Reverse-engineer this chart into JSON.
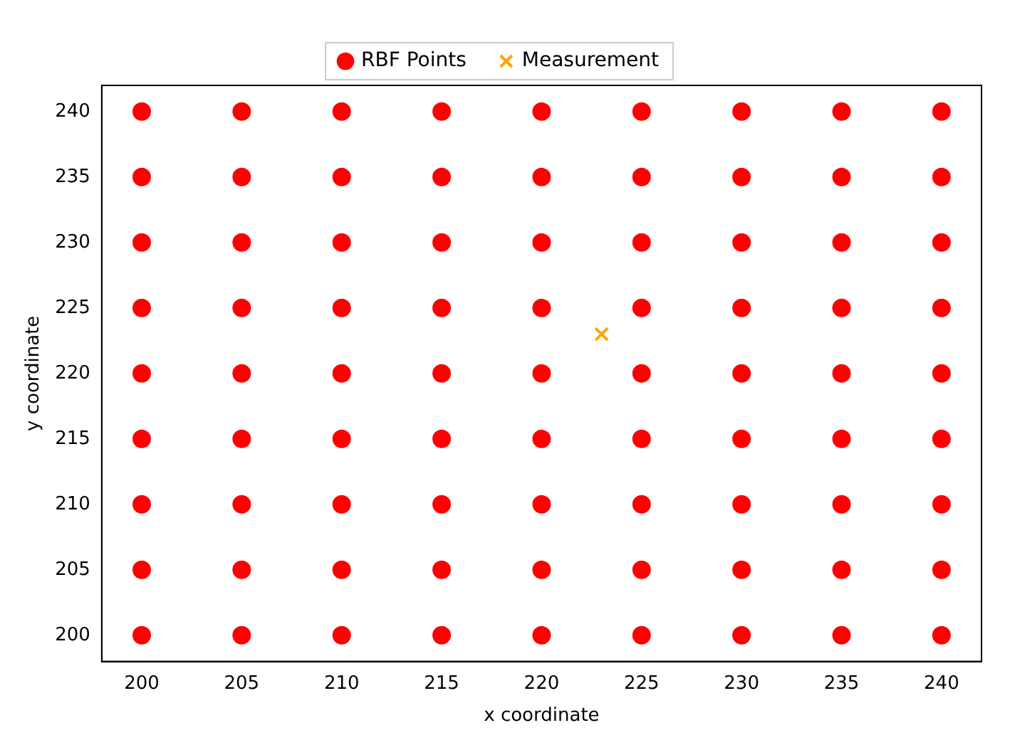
{
  "chart_data": {
    "type": "scatter",
    "xlabel": "x coordinate",
    "ylabel": "y coordinate",
    "xlim": [
      198,
      242
    ],
    "ylim": [
      198,
      242
    ],
    "xticks": [
      200,
      205,
      210,
      215,
      220,
      225,
      230,
      235,
      240
    ],
    "yticks": [
      200,
      205,
      210,
      215,
      220,
      225,
      230,
      235,
      240
    ],
    "grid": false,
    "legend": "top",
    "series": [
      {
        "name": "RBF Points",
        "color": "#ff0000",
        "marker": "circle",
        "x": [
          200,
          200,
          200,
          200,
          200,
          200,
          200,
          200,
          200,
          205,
          205,
          205,
          205,
          205,
          205,
          205,
          205,
          205,
          210,
          210,
          210,
          210,
          210,
          210,
          210,
          210,
          210,
          215,
          215,
          215,
          215,
          215,
          215,
          215,
          215,
          215,
          220,
          220,
          220,
          220,
          220,
          220,
          220,
          220,
          220,
          225,
          225,
          225,
          225,
          225,
          225,
          225,
          225,
          225,
          230,
          230,
          230,
          230,
          230,
          230,
          230,
          230,
          230,
          235,
          235,
          235,
          235,
          235,
          235,
          235,
          235,
          235,
          240,
          240,
          240,
          240,
          240,
          240,
          240,
          240,
          240
        ],
        "values": [
          200,
          205,
          210,
          215,
          220,
          225,
          230,
          235,
          240,
          200,
          205,
          210,
          215,
          220,
          225,
          230,
          235,
          240,
          200,
          205,
          210,
          215,
          220,
          225,
          230,
          235,
          240,
          200,
          205,
          210,
          215,
          220,
          225,
          230,
          235,
          240,
          200,
          205,
          210,
          215,
          220,
          225,
          230,
          235,
          240,
          200,
          205,
          210,
          215,
          220,
          225,
          230,
          235,
          240,
          200,
          205,
          210,
          215,
          220,
          225,
          230,
          235,
          240,
          200,
          205,
          210,
          215,
          220,
          225,
          230,
          235,
          240,
          200,
          205,
          210,
          215,
          220,
          225,
          230,
          235,
          240
        ]
      },
      {
        "name": "Measurement",
        "color": "#ffa500",
        "marker": "cross",
        "x": [
          223
        ],
        "values": [
          223
        ]
      }
    ]
  }
}
